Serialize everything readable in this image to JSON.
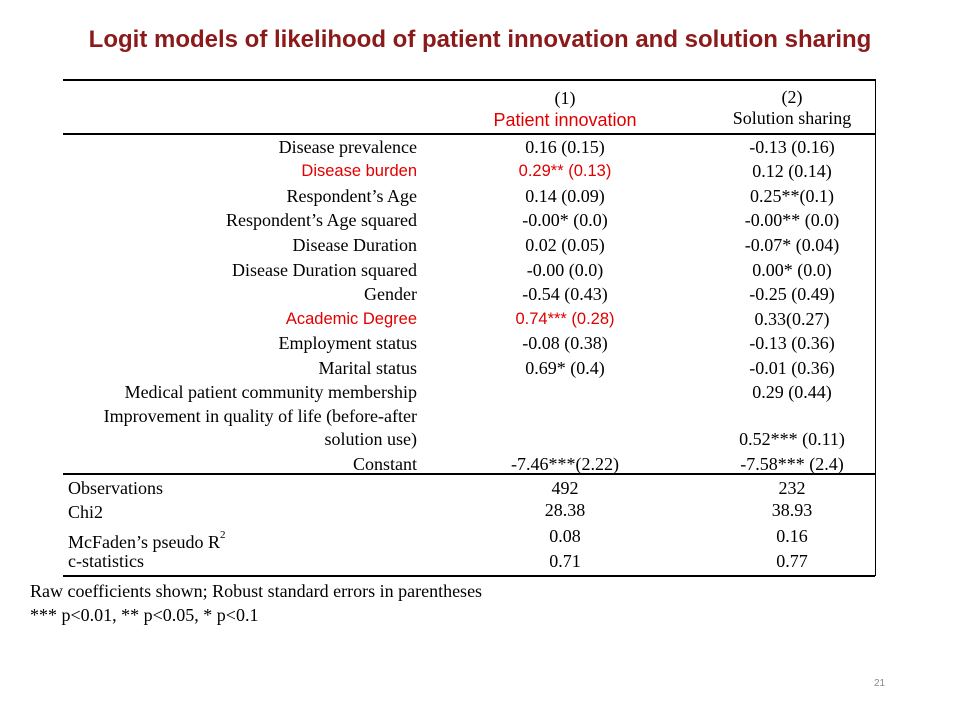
{
  "title": "Logit models of likelihood of patient innovation and solution sharing",
  "columns": [
    {
      "number": "(1)",
      "name": "Patient innovation"
    },
    {
      "number": "(2)",
      "name": "Solution sharing"
    }
  ],
  "rows": [
    {
      "label": "Disease prevalence",
      "col1": "0.16 (0.15)",
      "col2": "-0.13 (0.16)"
    },
    {
      "label": "Disease burden",
      "col1": "0.29** (0.13)",
      "col2": "0.12 (0.14)"
    },
    {
      "label": "Respondent’s Age",
      "col1": "0.14 (0.09)",
      "col2": "0.25**(0.1)"
    },
    {
      "label": "Respondent’s Age squared",
      "col1": "-0.00* (0.0)",
      "col2": "-0.00** (0.0)"
    },
    {
      "label": "Disease Duration",
      "col1": "0.02 (0.05)",
      "col2": "-0.07* (0.04)"
    },
    {
      "label": "Disease Duration squared",
      "col1": "-0.00 (0.0)",
      "col2": "0.00* (0.0)"
    },
    {
      "label": "Gender",
      "col1": "-0.54 (0.43)",
      "col2": "-0.25 (0.49)"
    },
    {
      "label": "Academic Degree",
      "col1": "0.74*** (0.28)",
      "col2": "0.33(0.27)"
    },
    {
      "label": "Employment status",
      "col1": "-0.08 (0.38)",
      "col2": "-0.13 (0.36)"
    },
    {
      "label": "Marital status",
      "col1": "0.69* (0.4)",
      "col2": "-0.01 (0.36)"
    },
    {
      "label": "Medical patient community membership",
      "col1": "",
      "col2": "0.29 (0.44)"
    },
    {
      "label_line1": "Improvement in quality of life (before-after",
      "label_line2": "solution use)",
      "col1": "",
      "col2": "0.52*** (0.11)"
    },
    {
      "label": "Constant",
      "col1": "-7.46***(2.22)",
      "col2": "-7.58*** (2.4)"
    }
  ],
  "stats": [
    {
      "label": "Observations",
      "col1": "492",
      "col2": "232"
    },
    {
      "label": "Chi2",
      "col1": "28.38",
      "col2": "38.93"
    },
    {
      "label": "McFaden’s pseudo R",
      "sup": "2",
      "col1": "0.08",
      "col2": "0.16"
    },
    {
      "label": "c-statistics",
      "col1": "0.71",
      "col2": "0.77"
    }
  ],
  "notes": [
    "Raw coefficients shown; Robust standard errors in parentheses",
    "*** p<0.01, ** p<0.05, * p<0.1"
  ],
  "page_number": "21",
  "colors": {
    "title": "#8b1a1a",
    "highlight": "#e00000",
    "page_number": "#8a8a8a"
  }
}
